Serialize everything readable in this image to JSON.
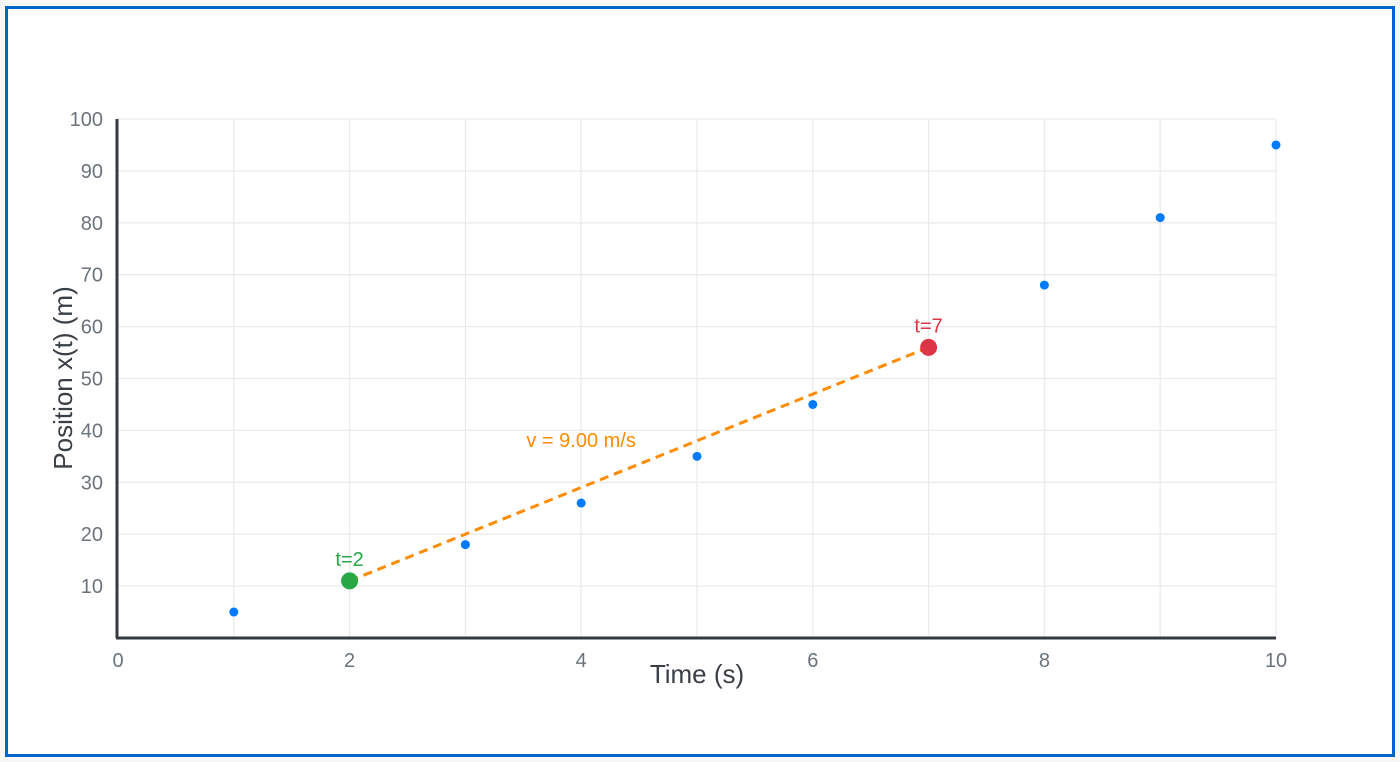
{
  "chart_data": {
    "type": "scatter",
    "title": "",
    "xlabel": "Time (s)",
    "ylabel": "Position x(t) (m)",
    "xlim": [
      0,
      10
    ],
    "ylim": [
      0,
      100
    ],
    "x_ticks": [
      0,
      2,
      4,
      6,
      8,
      10
    ],
    "y_ticks": [
      10,
      20,
      30,
      40,
      50,
      60,
      70,
      80,
      90,
      100
    ],
    "grid": true,
    "legend": null,
    "series": [
      {
        "name": "position",
        "color": "#007bff",
        "x": [
          1,
          2,
          3,
          4,
          5,
          6,
          7,
          8,
          9,
          10
        ],
        "y": [
          5,
          11,
          18,
          26,
          35,
          45,
          56,
          68,
          81,
          95
        ]
      }
    ],
    "highlighted_points": [
      {
        "label": "t=2",
        "x": 2,
        "y": 11,
        "color": "#28a745"
      },
      {
        "label": "t=7",
        "x": 7,
        "y": 56,
        "color": "#dc3545"
      }
    ],
    "secant_line": {
      "from": [
        2,
        11
      ],
      "to": [
        7,
        56
      ],
      "color": "#fd8c00",
      "style": "dashed",
      "label": "v = 9.00 m/s",
      "slope": 9.0
    }
  },
  "colors": {
    "frame_border": "#0066cc",
    "axis": "#343a40",
    "grid": "#ebebee",
    "tick_text": "#6b737c"
  }
}
